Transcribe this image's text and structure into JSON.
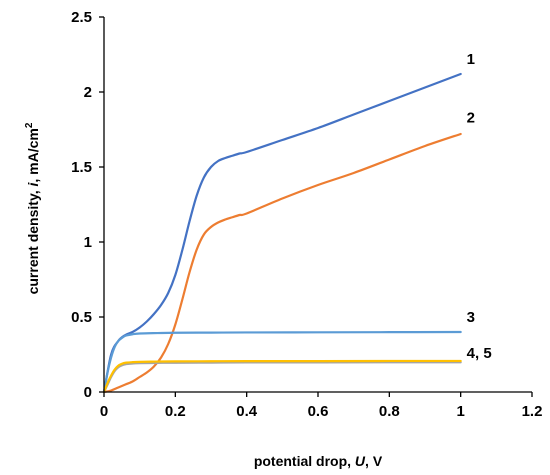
{
  "chart_data": {
    "type": "line",
    "xlabel": {
      "prefix": "potential drop, ",
      "symbol": "U",
      "suffix": ", V"
    },
    "ylabel": {
      "prefix": "current density, ",
      "symbol": "i",
      "suffix": ", mA/cm",
      "sup": "2"
    },
    "xlim": [
      0,
      1.2
    ],
    "ylim": [
      0,
      2.5
    ],
    "xticks": [
      "0",
      "0.2",
      "0.4",
      "0.6",
      "0.8",
      "1",
      "1.2"
    ],
    "xtick_values": [
      0,
      0.2,
      0.4,
      0.6,
      0.8,
      1.0,
      1.2
    ],
    "yticks": [
      "0",
      "0.5",
      "1",
      "1.5",
      "2",
      "2.5"
    ],
    "ytick_values": [
      0,
      0.5,
      1.0,
      1.5,
      2.0,
      2.5
    ],
    "grid": false,
    "legend": "none",
    "series": [
      {
        "label": "1",
        "color": "#4472C4",
        "x": [
          0,
          0.02,
          0.04,
          0.06,
          0.08,
          0.1,
          0.12,
          0.14,
          0.16,
          0.18,
          0.2,
          0.22,
          0.24,
          0.26,
          0.28,
          0.3,
          0.32,
          0.34,
          0.36,
          0.38,
          0.4,
          0.5,
          0.6,
          0.7,
          0.8,
          0.9,
          1.0
        ],
        "y": [
          0,
          0.25,
          0.34,
          0.38,
          0.4,
          0.43,
          0.47,
          0.52,
          0.58,
          0.66,
          0.78,
          0.95,
          1.14,
          1.31,
          1.43,
          1.5,
          1.54,
          1.56,
          1.575,
          1.59,
          1.6,
          1.68,
          1.76,
          1.85,
          1.94,
          2.03,
          2.12
        ]
      },
      {
        "label": "2",
        "color": "#ED7D31",
        "x": [
          0,
          0.02,
          0.04,
          0.06,
          0.08,
          0.1,
          0.12,
          0.14,
          0.16,
          0.18,
          0.2,
          0.22,
          0.24,
          0.26,
          0.28,
          0.3,
          0.32,
          0.34,
          0.36,
          0.38,
          0.4,
          0.5,
          0.6,
          0.7,
          0.8,
          0.9,
          1.0
        ],
        "y": [
          0,
          0.01,
          0.03,
          0.05,
          0.07,
          0.1,
          0.13,
          0.17,
          0.23,
          0.32,
          0.45,
          0.62,
          0.8,
          0.95,
          1.05,
          1.1,
          1.13,
          1.15,
          1.165,
          1.18,
          1.19,
          1.29,
          1.38,
          1.46,
          1.55,
          1.64,
          1.72
        ]
      },
      {
        "label": "3",
        "color": "#5B9BD5",
        "x": [
          0,
          0.01,
          0.02,
          0.03,
          0.04,
          0.05,
          0.06,
          0.08,
          0.1,
          0.15,
          0.2,
          0.3,
          0.4,
          0.6,
          0.8,
          1.0
        ],
        "y": [
          0,
          0.13,
          0.23,
          0.3,
          0.34,
          0.36,
          0.375,
          0.385,
          0.39,
          0.393,
          0.395,
          0.396,
          0.397,
          0.398,
          0.399,
          0.4
        ]
      },
      {
        "label": "4",
        "color": "#A5A5A5",
        "x": [
          0,
          0.01,
          0.02,
          0.03,
          0.04,
          0.05,
          0.06,
          0.08,
          0.1,
          0.15,
          0.2,
          0.3,
          0.4,
          0.6,
          0.8,
          1.0
        ],
        "y": [
          0,
          0.05,
          0.1,
          0.14,
          0.165,
          0.178,
          0.185,
          0.19,
          0.192,
          0.194,
          0.195,
          0.196,
          0.197,
          0.197,
          0.198,
          0.198
        ]
      },
      {
        "label": "5",
        "color": "#FFC000",
        "x": [
          0,
          0.01,
          0.02,
          0.03,
          0.04,
          0.05,
          0.06,
          0.08,
          0.1,
          0.15,
          0.2,
          0.3,
          0.4,
          0.6,
          0.8,
          1.0
        ],
        "y": [
          0,
          0.06,
          0.11,
          0.15,
          0.175,
          0.188,
          0.195,
          0.199,
          0.201,
          0.203,
          0.204,
          0.205,
          0.206,
          0.206,
          0.207,
          0.207
        ]
      }
    ],
    "annotations": [
      {
        "text": "1",
        "x": 1.0,
        "y": 2.22
      },
      {
        "text": "2",
        "x": 1.0,
        "y": 1.83
      },
      {
        "text": "3",
        "x": 1.0,
        "y": 0.5
      },
      {
        "text": "4, 5",
        "x": 1.0,
        "y": 0.26
      }
    ]
  }
}
